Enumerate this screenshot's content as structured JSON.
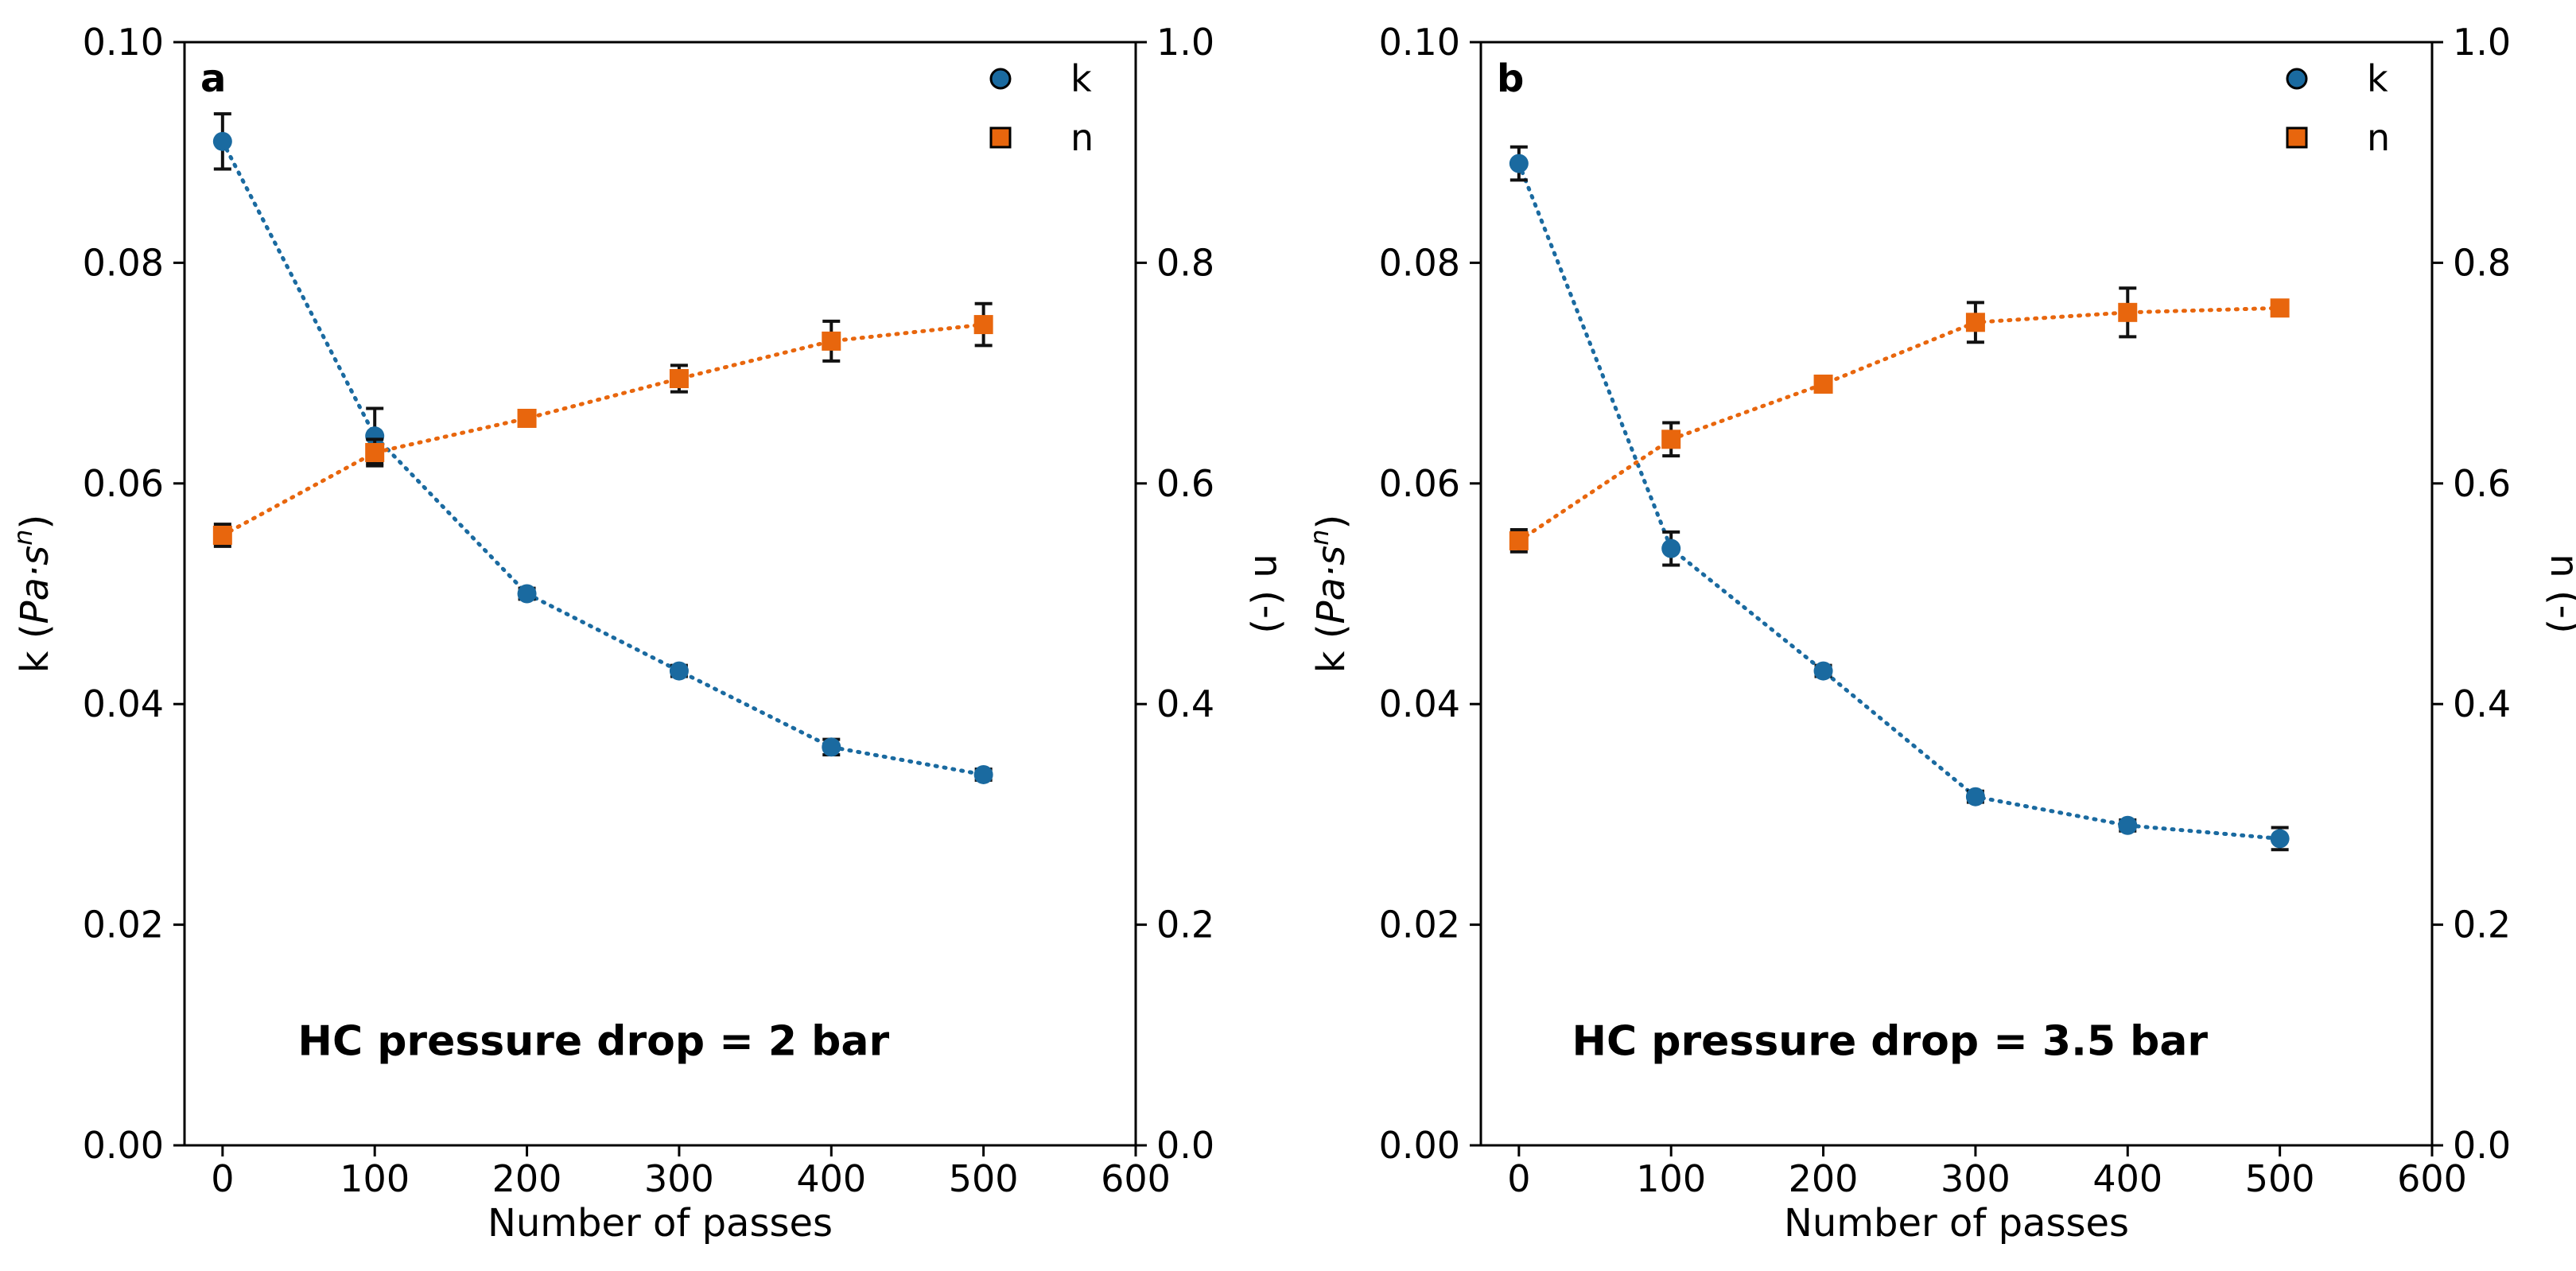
{
  "colors": {
    "k": "#1a6aa0",
    "n": "#e8660d",
    "axis": "#000000",
    "errorbar": "#111111"
  },
  "chart_data": [
    {
      "type": "scatter",
      "panel_label": "a",
      "annotation": "HC pressure drop = 2 bar",
      "xlabel": "Number of passes",
      "ylabel_left": {
        "prefix": "k (",
        "italic": "Pa·s",
        "sup": "n",
        "suffix": ")"
      },
      "ylabel_right": "n (-)",
      "xlim": [
        -25,
        600
      ],
      "ylim_left": [
        0,
        0.1
      ],
      "ylim_right": [
        0,
        1.0
      ],
      "x_ticks": [
        0,
        100,
        200,
        300,
        400,
        500,
        600
      ],
      "y_ticks_left": [
        "0.00",
        "0.02",
        "0.04",
        "0.06",
        "0.08",
        "0.10"
      ],
      "y_ticks_right": [
        "0.0",
        "0.2",
        "0.4",
        "0.6",
        "0.8",
        "1.0"
      ],
      "legend": {
        "position": "top-right",
        "entries": [
          "k",
          "n"
        ]
      },
      "series": [
        {
          "name": "k",
          "axis": "left",
          "marker": "circle",
          "x": [
            0,
            100,
            200,
            300,
            400,
            500
          ],
          "y": [
            0.091,
            0.0643,
            0.05,
            0.043,
            0.0361,
            0.0336
          ],
          "err": [
            0.0025,
            0.0025,
            0.0005,
            0.0005,
            0.0007,
            0.0005
          ]
        },
        {
          "name": "n",
          "axis": "right",
          "marker": "square",
          "x": [
            0,
            100,
            200,
            300,
            400,
            500
          ],
          "y": [
            0.553,
            0.628,
            0.659,
            0.695,
            0.729,
            0.744
          ],
          "err": [
            0.01,
            0.012,
            0.005,
            0.012,
            0.018,
            0.019
          ]
        }
      ]
    },
    {
      "type": "scatter",
      "panel_label": "b",
      "annotation": "HC pressure drop = 3.5 bar",
      "xlabel": "Number of passes",
      "ylabel_left": {
        "prefix": "k (",
        "italic": "Pa·s",
        "sup": "n",
        "suffix": ")"
      },
      "ylabel_right": "n (-)",
      "xlim": [
        -25,
        600
      ],
      "ylim_left": [
        0,
        0.1
      ],
      "ylim_right": [
        0,
        1.0
      ],
      "x_ticks": [
        0,
        100,
        200,
        300,
        400,
        500,
        600
      ],
      "y_ticks_left": [
        "0.00",
        "0.02",
        "0.04",
        "0.06",
        "0.08",
        "0.10"
      ],
      "y_ticks_right": [
        "0.0",
        "0.2",
        "0.4",
        "0.6",
        "0.8",
        "1.0"
      ],
      "legend": {
        "position": "top-right",
        "entries": [
          "k",
          "n"
        ]
      },
      "series": [
        {
          "name": "k",
          "axis": "left",
          "marker": "circle",
          "x": [
            0,
            100,
            200,
            300,
            400,
            500
          ],
          "y": [
            0.089,
            0.0541,
            0.043,
            0.0316,
            0.029,
            0.0278
          ],
          "err": [
            0.0015,
            0.0015,
            0.0005,
            0.0005,
            0.0005,
            0.001
          ]
        },
        {
          "name": "n",
          "axis": "right",
          "marker": "square",
          "x": [
            0,
            100,
            200,
            300,
            400,
            500
          ],
          "y": [
            0.548,
            0.64,
            0.69,
            0.746,
            0.755,
            0.759
          ],
          "err": [
            0.01,
            0.015,
            0.005,
            0.018,
            0.022,
            0.005
          ]
        }
      ]
    }
  ]
}
